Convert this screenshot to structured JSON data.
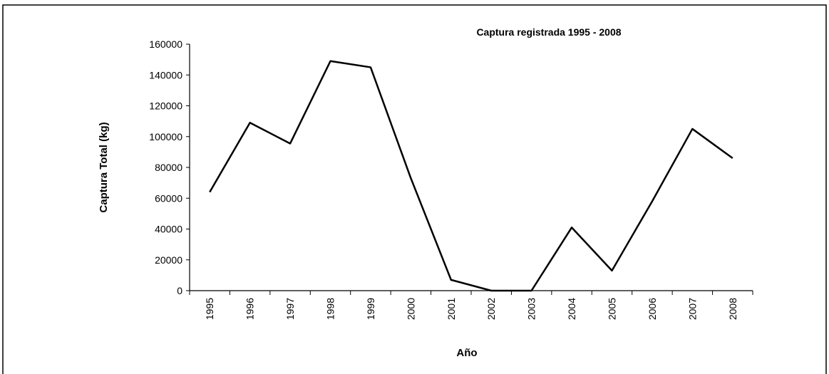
{
  "chart_data": {
    "type": "line",
    "title": "Captura registrada 1995 - 2008",
    "x_label": "Año",
    "y_label": "Captura Total (kg)",
    "categories": [
      "1995",
      "1996",
      "1997",
      "1998",
      "1999",
      "2000",
      "2001",
      "2002",
      "2003",
      "2004",
      "2005",
      "2006",
      "2007",
      "2008"
    ],
    "series": [
      {
        "name": "Captura",
        "color": "#000000",
        "values": [
          64000,
          109000,
          95500,
          149000,
          145000,
          73000,
          7000,
          0,
          0,
          41000,
          13000,
          58000,
          105000,
          86000
        ]
      }
    ],
    "ylim": [
      0,
      160000
    ],
    "yticks": [
      0,
      20000,
      40000,
      60000,
      80000,
      100000,
      120000,
      140000,
      160000
    ],
    "grid": false
  }
}
